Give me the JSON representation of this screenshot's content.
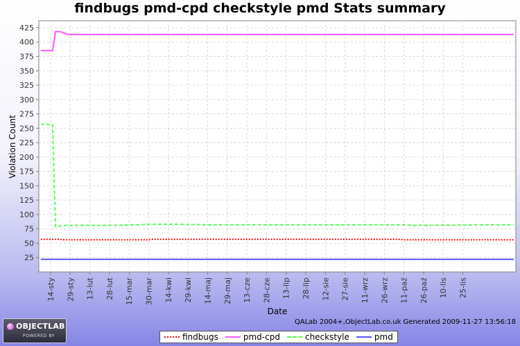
{
  "chart_data": {
    "type": "line",
    "title": "findbugs pmd-cpd checkstyle pmd  Stats summary",
    "xlabel": "Date",
    "ylabel": "Violation Count",
    "ylim": [
      0,
      437
    ],
    "yticks": [
      25,
      50,
      75,
      100,
      125,
      150,
      175,
      200,
      225,
      250,
      275,
      300,
      325,
      350,
      375,
      400,
      425
    ],
    "xlim": [
      -0.6,
      23.7
    ],
    "x_tick_labels": [
      "14-sty",
      "29-sty",
      "13-lut",
      "28-lut",
      "15-mar",
      "30-mar",
      "14-kwi",
      "29-kwi",
      "14-maj",
      "29-maj",
      "13-cze",
      "28-cze",
      "13-lip",
      "28-lip",
      "12-sie",
      "27-sie",
      "11-wrz",
      "26-wrz",
      "11-paź",
      "26-paź",
      "10-lis",
      "25-lis"
    ],
    "grid": true,
    "legend_position": "bottom",
    "series": [
      {
        "name": "findbugs",
        "color": "#ff0000",
        "dash": "dotted",
        "points": [
          [
            -0.5,
            57
          ],
          [
            0.3,
            57
          ],
          [
            0.7,
            56
          ],
          [
            5.0,
            56
          ],
          [
            5.2,
            57
          ],
          [
            17.6,
            57
          ],
          [
            18.1,
            56
          ],
          [
            23.6,
            56
          ]
        ]
      },
      {
        "name": "pmd-cpd",
        "color": "#ff55ff",
        "dash": "solid",
        "points": [
          [
            -0.5,
            385
          ],
          [
            0.1,
            385
          ],
          [
            0.25,
            418
          ],
          [
            0.5,
            418
          ],
          [
            0.9,
            413
          ],
          [
            23.6,
            413
          ]
        ]
      },
      {
        "name": "checkstyle",
        "color": "#55ff55",
        "dash": "dashed",
        "points": [
          [
            -0.5,
            257
          ],
          [
            0.1,
            256
          ],
          [
            0.25,
            79
          ],
          [
            0.8,
            81
          ],
          [
            3.0,
            81
          ],
          [
            4.5,
            82
          ],
          [
            5.0,
            83
          ],
          [
            6.5,
            83
          ],
          [
            8.0,
            82
          ],
          [
            18.0,
            82
          ],
          [
            18.5,
            81
          ],
          [
            23.0,
            82
          ],
          [
            23.6,
            82
          ]
        ]
      },
      {
        "name": "pmd",
        "color": "#5555ff",
        "dash": "solid",
        "points": [
          [
            -0.5,
            22
          ],
          [
            23.6,
            22
          ]
        ]
      }
    ]
  },
  "footer": {
    "credit": "QALab 2004+,ObjectLab.co.uk Generated 2009-11-27 13:56:18"
  },
  "logo": {
    "main": "OBJECTLAB",
    "sub": "POWERED BY",
    "colors": {
      "body": "#3a3a48",
      "dot": "#c03fc0"
    }
  }
}
